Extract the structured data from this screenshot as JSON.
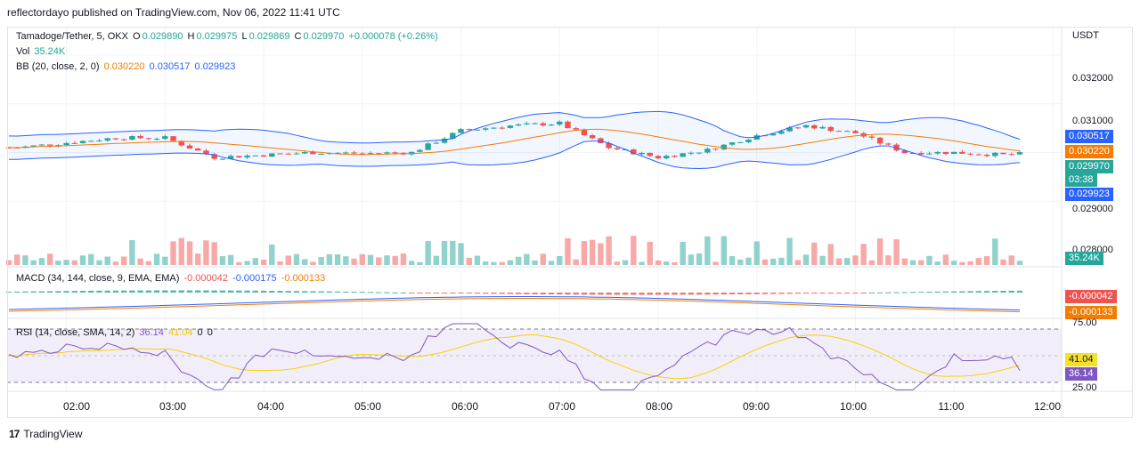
{
  "caption": "reflectordayo published on TradingView.com, Nov 06, 2022 11:41 UTC",
  "footer": {
    "brand": "TradingView",
    "logo_text": "17"
  },
  "currency": "USDT",
  "colors": {
    "up": "#26a69a",
    "down": "#ef5350",
    "bb_basis": "#f57c00",
    "bb_band": "#2962ff",
    "macd": "#2962ff",
    "signal": "#f57c00",
    "rsi": "#7e57c2",
    "rsi_ma": "#f5d300"
  },
  "legend": {
    "symbol": "Tamadoge/Tether, 5, OKX",
    "o_label": "O",
    "o": "0.029890",
    "h_label": "H",
    "h": "0.029975",
    "l_label": "L",
    "l": "0.029869",
    "c_label": "C",
    "c": "0.029970",
    "change": "+0.000078 (+0.26%)",
    "vol_label": "Vol",
    "vol": "35.24K",
    "bb_label": "BB (20, close, 2, 0)",
    "bb_basis": "0.030220",
    "bb_upper": "0.030517",
    "bb_lower": "0.029923",
    "macd_label": "MACD (34, 144, close, 9, EMA, EMA)",
    "macd_hist": "-0.000042",
    "macd_line": "-0.000175",
    "macd_signal": "-0.000133",
    "rsi_label": "RSI (14, close, SMA, 14, 2)",
    "rsi": "36.14",
    "rsi_ma": "41.04",
    "rsi_x": "0",
    "rsi_y": "0"
  },
  "price_axis": {
    "ticks": [
      "0.032000",
      "0.031000",
      "0.029000",
      "0.028000"
    ]
  },
  "tags": {
    "bb_upper": "0.030517",
    "bb_basis": "0.030220",
    "price": "0.029970",
    "countdown": "03:38",
    "bb_lower": "0.029923",
    "volume": "35.24K",
    "macd_hist": "-0.000042",
    "macd_signal": "-0.000133",
    "rsi_ma": "41.04",
    "rsi": "36.14"
  },
  "rsi_axis": {
    "upper": "75.00",
    "lower": "25.00"
  },
  "time_axis": [
    "02:00",
    "03:00",
    "04:00",
    "05:00",
    "06:00",
    "07:00",
    "08:00",
    "09:00",
    "10:00",
    "11:00",
    "12:00"
  ],
  "chart_data": {
    "type": "candlestick",
    "symbol": "Tamadoge/Tether",
    "timeframe": "5",
    "exchange": "OKX",
    "price_ylim": [
      0.0278,
      0.0324
    ],
    "time_range": [
      "01:25",
      "11:40"
    ],
    "candles_hourly_close": [
      {
        "t": "01:30",
        "close": 0.0301
      },
      {
        "t": "02:00",
        "close": 0.0302
      },
      {
        "t": "02:30",
        "close": 0.0303
      },
      {
        "t": "03:00",
        "close": 0.0303
      },
      {
        "t": "03:30",
        "close": 0.0299
      },
      {
        "t": "04:00",
        "close": 0.02995
      },
      {
        "t": "04:30",
        "close": 0.03
      },
      {
        "t": "05:00",
        "close": 0.02998
      },
      {
        "t": "05:30",
        "close": 0.03
      },
      {
        "t": "06:00",
        "close": 0.03045
      },
      {
        "t": "06:30",
        "close": 0.03055
      },
      {
        "t": "07:00",
        "close": 0.0306
      },
      {
        "t": "07:30",
        "close": 0.0301
      },
      {
        "t": "08:00",
        "close": 0.0299
      },
      {
        "t": "08:30",
        "close": 0.03005
      },
      {
        "t": "09:00",
        "close": 0.03035
      },
      {
        "t": "09:30",
        "close": 0.03055
      },
      {
        "t": "10:00",
        "close": 0.0304
      },
      {
        "t": "10:30",
        "close": 0.03
      },
      {
        "t": "11:00",
        "close": 0.03
      },
      {
        "t": "11:30",
        "close": 0.02995
      },
      {
        "t": "11:40",
        "close": 0.02997
      }
    ],
    "bollinger": {
      "basis": 0.03022,
      "upper": 0.030517,
      "lower": 0.029923
    },
    "volume_last": "35.24K",
    "macd": {
      "macd": -0.000175,
      "signal": -0.000133,
      "histogram": -4.2e-05
    },
    "rsi": {
      "value": 36.14,
      "ma": 41.04,
      "upper_band": 75.0,
      "lower_band": 25.0
    }
  }
}
